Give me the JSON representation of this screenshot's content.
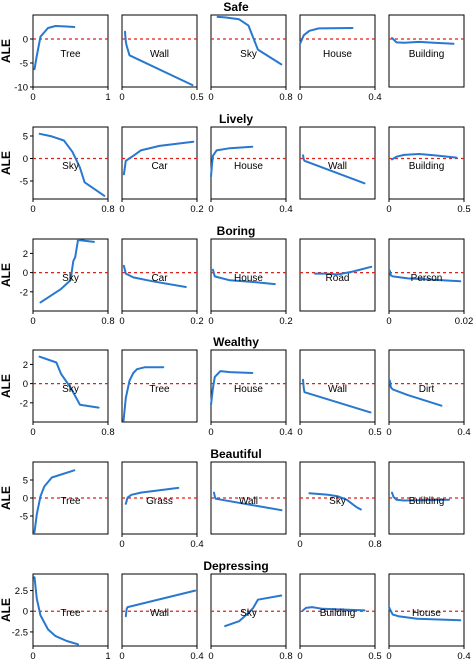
{
  "chart_data": [
    {
      "title": "Safe",
      "ylabel": "ALE",
      "panels": [
        {
          "label": "Tree",
          "type": "line",
          "xlim": [
            0,
            1
          ],
          "ylim": [
            -10,
            5
          ],
          "xticks": [
            "0",
            "1"
          ],
          "yticks": [
            "0",
            "-5",
            "-10"
          ],
          "ytick_values": [
            0,
            -5,
            -10
          ],
          "x": [
            0.02,
            0.05,
            0.1,
            0.2,
            0.3,
            0.45,
            0.55
          ],
          "y": [
            -6.3,
            -3.5,
            0.5,
            2.3,
            2.7,
            2.6,
            2.5
          ]
        },
        {
          "label": "Wall",
          "type": "line",
          "xlim": [
            0,
            0.5
          ],
          "ylim": [
            -10,
            5
          ],
          "xticks": [
            "0",
            "0.5"
          ],
          "x": [
            0.02,
            0.025,
            0.03,
            0.05,
            0.47
          ],
          "y": [
            1.5,
            -0.5,
            -1.3,
            -3.4,
            -9.6
          ]
        },
        {
          "label": "Sky",
          "type": "line",
          "xlim": [
            0,
            0.8
          ],
          "ylim": [
            -10,
            5
          ],
          "xticks": [
            "0",
            "0.8"
          ],
          "x": [
            0.07,
            0.15,
            0.3,
            0.4,
            0.5,
            0.75
          ],
          "y": [
            4.6,
            4.5,
            4.1,
            2.8,
            -2.2,
            -5.3
          ]
        },
        {
          "label": "House",
          "type": "line",
          "xlim": [
            0,
            0.4
          ],
          "ylim": [
            -10,
            5
          ],
          "xticks": [
            "0",
            "0.4"
          ],
          "x": [
            0.0,
            0.02,
            0.05,
            0.1,
            0.28
          ],
          "y": [
            -1.0,
            0.8,
            1.7,
            2.2,
            2.3
          ]
        },
        {
          "label": "Building",
          "type": "line",
          "xlim": [
            0,
            0.5
          ],
          "ylim": [
            -10,
            5
          ],
          "xticks": [],
          "x": [
            0.02,
            0.05,
            0.1,
            0.2,
            0.3,
            0.43
          ],
          "y": [
            0.2,
            -0.7,
            -0.8,
            -0.6,
            -0.8,
            -1.0
          ]
        }
      ]
    },
    {
      "title": "Lively",
      "ylabel": "ALE",
      "panels": [
        {
          "label": "Sky",
          "type": "line",
          "xlim": [
            0,
            0.8
          ],
          "ylim": [
            -9,
            7
          ],
          "xticks": [
            "0",
            "0.8"
          ],
          "yticks": [
            "5",
            "0",
            "-5"
          ],
          "ytick_values": [
            5,
            0,
            -5
          ],
          "x": [
            0.07,
            0.2,
            0.33,
            0.42,
            0.5,
            0.55,
            0.76
          ],
          "y": [
            5.5,
            4.9,
            4.0,
            1.5,
            -2.0,
            -5.3,
            -8.3
          ]
        },
        {
          "label": "Car",
          "type": "line",
          "xlim": [
            0,
            0.2
          ],
          "ylim": [
            -9,
            7
          ],
          "xticks": [
            "0",
            "0.2"
          ],
          "x": [
            0.005,
            0.01,
            0.03,
            0.05,
            0.1,
            0.19
          ],
          "y": [
            -3.5,
            -0.5,
            0.6,
            1.8,
            2.8,
            3.7
          ]
        },
        {
          "label": "House",
          "type": "line",
          "xlim": [
            0,
            0.4
          ],
          "ylim": [
            -9,
            7
          ],
          "xticks": [
            "0",
            "0.4"
          ],
          "x": [
            0.0,
            0.005,
            0.01,
            0.03,
            0.1,
            0.22
          ],
          "y": [
            -4.0,
            -1.5,
            0.6,
            1.8,
            2.3,
            2.6
          ]
        },
        {
          "label": "Wall",
          "type": "line",
          "xlim": [
            0,
            0.5
          ],
          "ylim": [
            -9,
            7
          ],
          "xticks": [],
          "x": [
            0.02,
            0.025,
            0.03,
            0.43
          ],
          "y": [
            0.7,
            -0.2,
            -0.5,
            -5.5
          ]
        },
        {
          "label": "Building",
          "type": "line",
          "xlim": [
            0,
            0.5
          ],
          "ylim": [
            -9,
            7
          ],
          "xticks": [
            "0",
            "0.5"
          ],
          "x": [
            0.02,
            0.05,
            0.1,
            0.2,
            0.3,
            0.45
          ],
          "y": [
            -0.2,
            0.4,
            0.8,
            1.0,
            0.7,
            0.2
          ]
        }
      ]
    },
    {
      "title": "Boring",
      "ylabel": "ALE",
      "panels": [
        {
          "label": "Sky",
          "type": "line",
          "xlim": [
            0,
            0.8
          ],
          "ylim": [
            -4,
            3.5
          ],
          "xticks": [
            "0",
            "0.8"
          ],
          "yticks": [
            "2",
            "0",
            "-2"
          ],
          "ytick_values": [
            2,
            0,
            -2
          ],
          "x": [
            0.08,
            0.3,
            0.4,
            0.43,
            0.45,
            0.48,
            0.65
          ],
          "y": [
            -3.1,
            -1.7,
            -0.8,
            1.2,
            1.6,
            3.4,
            3.2
          ]
        },
        {
          "label": "Car",
          "type": "line",
          "xlim": [
            0,
            0.2
          ],
          "ylim": [
            -4,
            3.5
          ],
          "xticks": [
            "0",
            "0.2"
          ],
          "x": [
            0.005,
            0.01,
            0.03,
            0.08,
            0.17
          ],
          "y": [
            0.7,
            -0.1,
            -0.5,
            -0.9,
            -1.5
          ]
        },
        {
          "label": "House",
          "type": "line",
          "xlim": [
            0,
            0.2
          ],
          "ylim": [
            -4,
            3.5
          ],
          "xticks": [
            "0",
            "0.2"
          ],
          "x": [
            0.005,
            0.01,
            0.02,
            0.05,
            0.12,
            0.17
          ],
          "y": [
            0.3,
            -0.4,
            -0.5,
            -0.8,
            -1.0,
            -1.2
          ]
        },
        {
          "label": "Road",
          "type": "line",
          "xlim": [
            0,
            0.2
          ],
          "ylim": [
            -4,
            3.5
          ],
          "xticks": [],
          "x": [
            0.04,
            0.07,
            0.1,
            0.14,
            0.19
          ],
          "y": [
            -0.1,
            -0.1,
            -0.2,
            0.1,
            0.6
          ]
        },
        {
          "label": "Person",
          "type": "line",
          "xlim": [
            0,
            0.02
          ],
          "ylim": [
            -4,
            3.5
          ],
          "xticks": [
            "0",
            "0.02"
          ],
          "x": [
            0.0002,
            0.0005,
            0.001,
            0.005,
            0.019
          ],
          "y": [
            0.2,
            -0.3,
            -0.4,
            -0.6,
            -0.9
          ]
        }
      ]
    },
    {
      "title": "Wealthy",
      "ylabel": "ALE",
      "panels": [
        {
          "label": "Sky",
          "type": "line",
          "xlim": [
            0,
            0.8
          ],
          "ylim": [
            -4,
            3.5
          ],
          "xticks": [
            "0",
            "0.8"
          ],
          "yticks": [
            "2",
            "0",
            "-2"
          ],
          "ytick_values": [
            2,
            0,
            -2
          ],
          "x": [
            0.07,
            0.25,
            0.3,
            0.4,
            0.5,
            0.7
          ],
          "y": [
            2.8,
            2.2,
            1.0,
            -0.4,
            -2.2,
            -2.5
          ]
        },
        {
          "label": "Tree",
          "type": "line",
          "xlim": [
            0,
            1
          ],
          "ylim": [
            -4,
            3.5
          ],
          "xticks": [],
          "x": [
            0.02,
            0.05,
            0.1,
            0.15,
            0.2,
            0.3,
            0.55
          ],
          "y": [
            -3.9,
            -1.5,
            0.3,
            1.1,
            1.5,
            1.7,
            1.7
          ]
        },
        {
          "label": "House",
          "type": "line",
          "xlim": [
            0,
            0.4
          ],
          "ylim": [
            -4,
            3.5
          ],
          "xticks": [
            "0",
            "0.4"
          ],
          "x": [
            0.0,
            0.01,
            0.02,
            0.05,
            0.1,
            0.22
          ],
          "y": [
            -2.2,
            -0.5,
            0.7,
            1.3,
            1.2,
            1.1
          ]
        },
        {
          "label": "Wall",
          "type": "line",
          "xlim": [
            0,
            0.5
          ],
          "ylim": [
            -4,
            3.5
          ],
          "xticks": [
            "0",
            "0.5"
          ],
          "x": [
            0.02,
            0.025,
            0.03,
            0.47
          ],
          "y": [
            0.4,
            -0.5,
            -0.9,
            -3.0
          ]
        },
        {
          "label": "Dirt",
          "type": "line",
          "xlim": [
            0,
            0.4
          ],
          "ylim": [
            -4,
            3.5
          ],
          "xticks": [
            "0",
            "0.4"
          ],
          "x": [
            0.005,
            0.01,
            0.02,
            0.1,
            0.28
          ],
          "y": [
            0.3,
            -0.4,
            -0.6,
            -1.2,
            -2.3
          ]
        }
      ]
    },
    {
      "title": "Beautiful",
      "ylabel": "ALE",
      "panels": [
        {
          "label": "Tree",
          "type": "line",
          "xlim": [
            0,
            1
          ],
          "ylim": [
            -10,
            10
          ],
          "xticks": [],
          "yticks": [
            "5",
            "0",
            "-5"
          ],
          "ytick_values": [
            5,
            0,
            -5
          ],
          "x": [
            0.02,
            0.05,
            0.1,
            0.15,
            0.25,
            0.55
          ],
          "y": [
            -9.5,
            -4.5,
            0.5,
            3.2,
            5.7,
            7.7
          ]
        },
        {
          "label": "Grass",
          "type": "line",
          "xlim": [
            0,
            0.4
          ],
          "ylim": [
            -10,
            10
          ],
          "xticks": [
            "0",
            "0.4"
          ],
          "x": [
            0.02,
            0.03,
            0.05,
            0.1,
            0.3
          ],
          "y": [
            -1.6,
            0.1,
            0.9,
            1.5,
            2.8
          ]
        },
        {
          "label": "Wall",
          "type": "line",
          "xlim": [
            0,
            0.5
          ],
          "ylim": [
            -10,
            10
          ],
          "xticks": [],
          "x": [
            0.02,
            0.025,
            0.03,
            0.47
          ],
          "y": [
            1.5,
            0.4,
            -0.2,
            -3.4
          ]
        },
        {
          "label": "Sky",
          "type": "line",
          "xlim": [
            0,
            0.8
          ],
          "ylim": [
            -10,
            10
          ],
          "xticks": [
            "0",
            "0.8"
          ],
          "x": [
            0.1,
            0.3,
            0.4,
            0.5,
            0.55,
            0.6,
            0.65
          ],
          "y": [
            1.3,
            0.9,
            0.5,
            -0.5,
            -1.5,
            -2.5,
            -3.2
          ]
        },
        {
          "label": "Building",
          "type": "line",
          "xlim": [
            0,
            0.5
          ],
          "ylim": [
            -10,
            10
          ],
          "xticks": [],
          "x": [
            0.02,
            0.03,
            0.05,
            0.1,
            0.2,
            0.4
          ],
          "y": [
            1.5,
            0.3,
            -0.5,
            -0.7,
            -0.6,
            -0.5
          ]
        }
      ]
    },
    {
      "title": "Depressing",
      "ylabel": "ALE",
      "panels": [
        {
          "label": "Tree",
          "type": "line",
          "xlim": [
            0,
            1
          ],
          "ylim": [
            -4.2,
            4.5
          ],
          "xticks": [
            "0",
            "1"
          ],
          "yticks": [
            "2.5",
            "0",
            "-2.5"
          ],
          "ytick_values": [
            2.5,
            0,
            -2.5
          ],
          "x": [
            0.02,
            0.05,
            0.1,
            0.2,
            0.3,
            0.45,
            0.6
          ],
          "y": [
            4.1,
            1.5,
            -0.5,
            -2.2,
            -3.0,
            -3.6,
            -4.0
          ]
        },
        {
          "label": "Wall",
          "type": "line",
          "xlim": [
            0,
            0.4
          ],
          "ylim": [
            -4.2,
            4.5
          ],
          "xticks": [
            "0",
            "0.4"
          ],
          "x": [
            0.02,
            0.025,
            0.03,
            0.39
          ],
          "y": [
            -0.6,
            0.3,
            0.5,
            2.5
          ]
        },
        {
          "label": "Sky",
          "type": "line",
          "xlim": [
            0,
            0.8
          ],
          "ylim": [
            -4.2,
            4.5
          ],
          "xticks": [
            "0",
            "0.8"
          ],
          "x": [
            0.15,
            0.3,
            0.4,
            0.45,
            0.5,
            0.75
          ],
          "y": [
            -1.8,
            -1.2,
            -0.2,
            0.4,
            1.4,
            1.9
          ]
        },
        {
          "label": "Building",
          "type": "line",
          "xlim": [
            0,
            0.5
          ],
          "ylim": [
            -4.2,
            4.5
          ],
          "xticks": [
            "0",
            "0.5"
          ],
          "x": [
            0.02,
            0.04,
            0.08,
            0.15,
            0.3,
            0.43
          ],
          "y": [
            0.1,
            0.4,
            0.5,
            0.3,
            0.2,
            0.1
          ]
        },
        {
          "label": "House",
          "type": "line",
          "xlim": [
            0,
            0.4
          ],
          "ylim": [
            -4.2,
            4.5
          ],
          "xticks": [
            "0",
            "0.4"
          ],
          "x": [
            0.0,
            0.01,
            0.02,
            0.05,
            0.15,
            0.38
          ],
          "y": [
            0.5,
            0.0,
            -0.4,
            -0.6,
            -0.9,
            -1.1
          ]
        }
      ]
    }
  ],
  "colors": {
    "series": "#2878d0",
    "zero_line": "#e0201b",
    "frame": "#000000"
  }
}
